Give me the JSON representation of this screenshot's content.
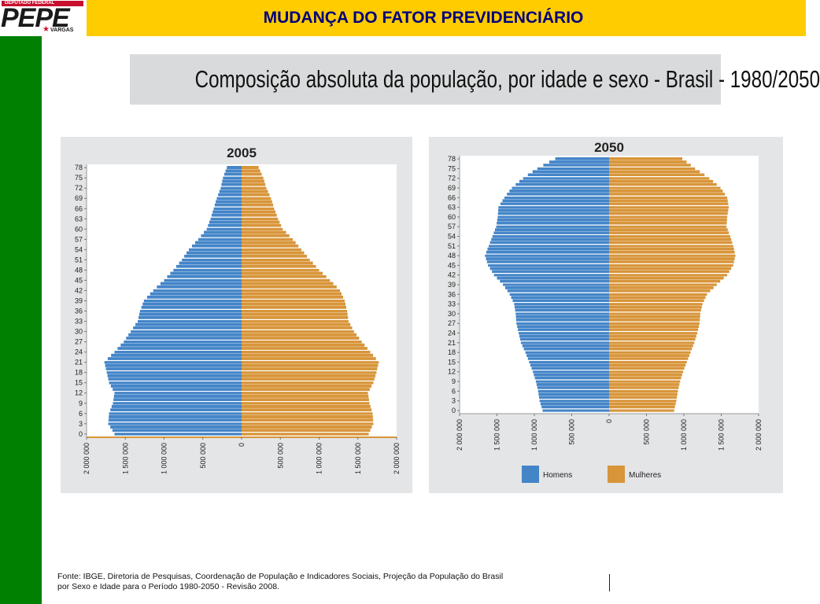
{
  "header": {
    "title": "MUDANÇA DO FATOR PREVIDENCIÁRIO",
    "logo_top_text": "DEPUTADO FEDERAL",
    "logo_main_text": "PEPE",
    "logo_sub_text": "VARGAS"
  },
  "banner": {
    "text": "Composição absoluta da população, por idade e sexo - Brasil - 1980/2050"
  },
  "footnote": {
    "line1": "Fonte: IBGE, Diretoria de Pesquisas, Coordenação de População e Indicadores Sociais, Projeção da População do Brasil",
    "line2": "por Sexo e Idade para o Período 1980-2050 - Revisão 2008."
  },
  "colors": {
    "homens": "#4485c8",
    "mulheres": "#d8953a",
    "sidebar": "#008000",
    "header_bar": "#ffcc00",
    "title_text": "#00007f"
  },
  "chart_data": [
    {
      "type": "bar",
      "orientation": "horizontal",
      "title": "2005",
      "age_tick_labels": [
        "0",
        "3",
        "6",
        "9",
        "12",
        "15",
        "18",
        "21",
        "24",
        "27",
        "30",
        "33",
        "36",
        "39",
        "42",
        "45",
        "48",
        "51",
        "54",
        "57",
        "60",
        "63",
        "66",
        "69",
        "72",
        "75",
        "78"
      ],
      "x_tick_labels": [
        "2 000 000",
        "1 500 000",
        "1 000 000",
        "500 000",
        "0",
        "500 000",
        "1 000 000",
        "1 500 000",
        "2 000 000"
      ],
      "xlim": [
        -2000000,
        2000000
      ],
      "ages": [
        0,
        78
      ],
      "series": [
        {
          "name": "Homens",
          "anchors": [
            [
              0,
              1640000
            ],
            [
              3,
              1720000
            ],
            [
              6,
              1710000
            ],
            [
              9,
              1660000
            ],
            [
              12,
              1640000
            ],
            [
              15,
              1710000
            ],
            [
              18,
              1740000
            ],
            [
              21,
              1770000
            ],
            [
              24,
              1640000
            ],
            [
              27,
              1520000
            ],
            [
              30,
              1430000
            ],
            [
              33,
              1340000
            ],
            [
              36,
              1310000
            ],
            [
              39,
              1260000
            ],
            [
              42,
              1140000
            ],
            [
              45,
              1000000
            ],
            [
              48,
              880000
            ],
            [
              51,
              770000
            ],
            [
              54,
              680000
            ],
            [
              57,
              560000
            ],
            [
              60,
              450000
            ],
            [
              63,
              400000
            ],
            [
              66,
              360000
            ],
            [
              69,
              320000
            ],
            [
              72,
              270000
            ],
            [
              75,
              240000
            ],
            [
              78,
              190000
            ]
          ]
        },
        {
          "name": "Mulheres",
          "anchors": [
            [
              0,
              1640000
            ],
            [
              3,
              1700000
            ],
            [
              6,
              1690000
            ],
            [
              9,
              1650000
            ],
            [
              12,
              1630000
            ],
            [
              15,
              1700000
            ],
            [
              18,
              1740000
            ],
            [
              21,
              1770000
            ],
            [
              24,
              1660000
            ],
            [
              27,
              1550000
            ],
            [
              30,
              1450000
            ],
            [
              33,
              1380000
            ],
            [
              36,
              1360000
            ],
            [
              39,
              1330000
            ],
            [
              42,
              1270000
            ],
            [
              45,
              1140000
            ],
            [
              48,
              1000000
            ],
            [
              51,
              880000
            ],
            [
              54,
              770000
            ],
            [
              57,
              660000
            ],
            [
              60,
              530000
            ],
            [
              63,
              470000
            ],
            [
              66,
              420000
            ],
            [
              69,
              380000
            ],
            [
              72,
              320000
            ],
            [
              75,
              280000
            ],
            [
              78,
              220000
            ]
          ]
        }
      ]
    },
    {
      "type": "bar",
      "orientation": "horizontal",
      "title": "2050",
      "age_tick_labels": [
        "0",
        "3",
        "6",
        "9",
        "12",
        "15",
        "18",
        "21",
        "24",
        "27",
        "30",
        "33",
        "36",
        "39",
        "42",
        "45",
        "48",
        "51",
        "54",
        "57",
        "60",
        "63",
        "66",
        "69",
        "72",
        "75",
        "78"
      ],
      "x_tick_labels": [
        "2 000 000",
        "1 500 000",
        "1 000 000",
        "500 000",
        "0",
        "500 000",
        "1 000 000",
        "1 500 000",
        "2 000 000"
      ],
      "xlim": [
        -2000000,
        2000000
      ],
      "ages": [
        0,
        78
      ],
      "legend": {
        "position": "bottom",
        "labels": [
          "Homens",
          "Mulheres"
        ]
      },
      "series": [
        {
          "name": "Homens",
          "anchors": [
            [
              0,
              890000
            ],
            [
              3,
              930000
            ],
            [
              6,
              950000
            ],
            [
              9,
              980000
            ],
            [
              12,
              1020000
            ],
            [
              15,
              1070000
            ],
            [
              18,
              1120000
            ],
            [
              21,
              1180000
            ],
            [
              24,
              1210000
            ],
            [
              27,
              1240000
            ],
            [
              30,
              1250000
            ],
            [
              33,
              1270000
            ],
            [
              36,
              1330000
            ],
            [
              39,
              1420000
            ],
            [
              42,
              1540000
            ],
            [
              45,
              1620000
            ],
            [
              48,
              1660000
            ],
            [
              51,
              1610000
            ],
            [
              54,
              1560000
            ],
            [
              57,
              1510000
            ],
            [
              60,
              1490000
            ],
            [
              63,
              1480000
            ],
            [
              66,
              1400000
            ],
            [
              69,
              1300000
            ],
            [
              72,
              1150000
            ],
            [
              75,
              960000
            ],
            [
              78,
              720000
            ]
          ]
        },
        {
          "name": "Mulheres",
          "anchors": [
            [
              0,
              870000
            ],
            [
              3,
              900000
            ],
            [
              6,
              920000
            ],
            [
              9,
              950000
            ],
            [
              12,
              990000
            ],
            [
              15,
              1040000
            ],
            [
              18,
              1090000
            ],
            [
              21,
              1140000
            ],
            [
              24,
              1180000
            ],
            [
              27,
              1210000
            ],
            [
              30,
              1220000
            ],
            [
              33,
              1250000
            ],
            [
              36,
              1310000
            ],
            [
              39,
              1440000
            ],
            [
              42,
              1580000
            ],
            [
              45,
              1660000
            ],
            [
              48,
              1690000
            ],
            [
              51,
              1660000
            ],
            [
              54,
              1620000
            ],
            [
              57,
              1570000
            ],
            [
              60,
              1580000
            ],
            [
              63,
              1600000
            ],
            [
              66,
              1580000
            ],
            [
              69,
              1490000
            ],
            [
              72,
              1340000
            ],
            [
              75,
              1150000
            ],
            [
              78,
              980000
            ]
          ]
        }
      ]
    }
  ]
}
